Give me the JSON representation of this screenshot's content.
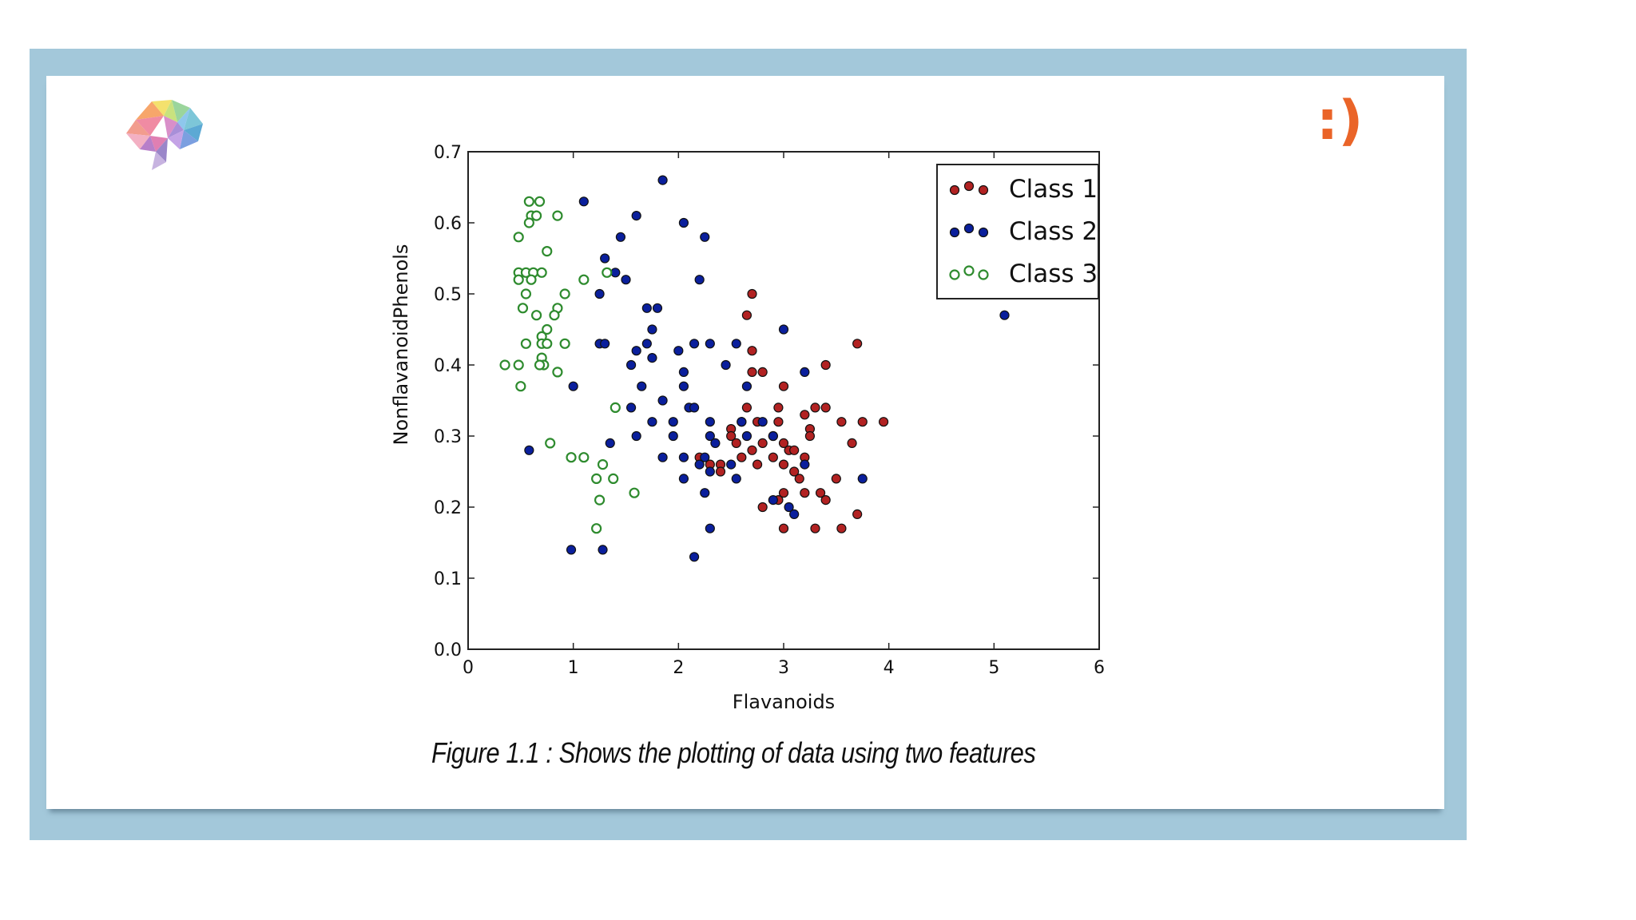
{
  "colors": {
    "frame": "#a3c8da",
    "smiley": "#ea6428",
    "class1": "#b22222",
    "class2": "#0a1f9c",
    "class3": "#2e8b2e"
  },
  "icons": {
    "logo": "polygon-brain-icon"
  },
  "smiley_text": ":)",
  "caption": "Figure 1.1 : Shows the plotting of data using two features",
  "chart_data": {
    "type": "scatter",
    "title": "",
    "xlabel": "Flavanoids",
    "ylabel": "NonflavanoidPhenols",
    "xlim": [
      0,
      6
    ],
    "ylim": [
      0,
      0.7
    ],
    "xticks": [
      "0",
      "1",
      "2",
      "3",
      "4",
      "5",
      "6"
    ],
    "yticks": [
      "0.0",
      "0.1",
      "0.2",
      "0.3",
      "0.4",
      "0.5",
      "0.6",
      "0.7"
    ],
    "grid": false,
    "legend_position": "top-right",
    "series": [
      {
        "name": "Class 1",
        "marker": "filled",
        "color": "#b22222",
        "points": [
          [
            2.7,
            0.5
          ],
          [
            2.65,
            0.47
          ],
          [
            2.7,
            0.42
          ],
          [
            3.7,
            0.43
          ],
          [
            3.4,
            0.4
          ],
          [
            2.7,
            0.39
          ],
          [
            2.8,
            0.39
          ],
          [
            2.65,
            0.34
          ],
          [
            3.0,
            0.37
          ],
          [
            2.95,
            0.34
          ],
          [
            3.2,
            0.33
          ],
          [
            3.3,
            0.34
          ],
          [
            3.4,
            0.34
          ],
          [
            2.6,
            0.32
          ],
          [
            2.75,
            0.32
          ],
          [
            2.95,
            0.32
          ],
          [
            3.25,
            0.31
          ],
          [
            3.55,
            0.32
          ],
          [
            3.75,
            0.32
          ],
          [
            3.95,
            0.32
          ],
          [
            2.5,
            0.31
          ],
          [
            2.9,
            0.3
          ],
          [
            3.25,
            0.3
          ],
          [
            2.2,
            0.27
          ],
          [
            2.3,
            0.26
          ],
          [
            2.4,
            0.26
          ],
          [
            2.6,
            0.27
          ],
          [
            2.7,
            0.28
          ],
          [
            2.8,
            0.29
          ],
          [
            3.0,
            0.29
          ],
          [
            3.05,
            0.28
          ],
          [
            3.1,
            0.28
          ],
          [
            3.2,
            0.27
          ],
          [
            2.75,
            0.26
          ],
          [
            2.9,
            0.27
          ],
          [
            3.0,
            0.26
          ],
          [
            2.4,
            0.25
          ],
          [
            3.15,
            0.24
          ],
          [
            3.5,
            0.24
          ],
          [
            3.65,
            0.29
          ],
          [
            3.2,
            0.22
          ],
          [
            3.35,
            0.22
          ],
          [
            3.4,
            0.21
          ],
          [
            3.0,
            0.22
          ],
          [
            2.8,
            0.2
          ],
          [
            2.95,
            0.21
          ],
          [
            3.0,
            0.17
          ],
          [
            3.3,
            0.17
          ],
          [
            3.55,
            0.17
          ],
          [
            3.7,
            0.19
          ],
          [
            2.5,
            0.3
          ],
          [
            2.55,
            0.29
          ],
          [
            3.1,
            0.25
          ]
        ]
      },
      {
        "name": "Class 2",
        "marker": "filled",
        "color": "#0a1f9c",
        "points": [
          [
            1.85,
            0.66
          ],
          [
            1.1,
            0.63
          ],
          [
            1.6,
            0.61
          ],
          [
            2.05,
            0.6
          ],
          [
            2.25,
            0.58
          ],
          [
            1.45,
            0.58
          ],
          [
            1.3,
            0.55
          ],
          [
            1.4,
            0.53
          ],
          [
            1.5,
            0.52
          ],
          [
            2.2,
            0.52
          ],
          [
            1.25,
            0.5
          ],
          [
            1.7,
            0.48
          ],
          [
            1.8,
            0.48
          ],
          [
            1.75,
            0.45
          ],
          [
            3.0,
            0.45
          ],
          [
            5.1,
            0.47
          ],
          [
            1.25,
            0.43
          ],
          [
            1.3,
            0.43
          ],
          [
            1.7,
            0.43
          ],
          [
            2.15,
            0.43
          ],
          [
            2.3,
            0.43
          ],
          [
            2.55,
            0.43
          ],
          [
            1.6,
            0.42
          ],
          [
            1.75,
            0.41
          ],
          [
            2.0,
            0.42
          ],
          [
            1.55,
            0.4
          ],
          [
            2.45,
            0.4
          ],
          [
            2.05,
            0.39
          ],
          [
            3.2,
            0.39
          ],
          [
            1.0,
            0.37
          ],
          [
            1.65,
            0.37
          ],
          [
            2.05,
            0.37
          ],
          [
            2.65,
            0.37
          ],
          [
            1.85,
            0.35
          ],
          [
            1.55,
            0.34
          ],
          [
            2.1,
            0.34
          ],
          [
            2.15,
            0.34
          ],
          [
            1.75,
            0.32
          ],
          [
            1.95,
            0.32
          ],
          [
            2.3,
            0.32
          ],
          [
            2.6,
            0.32
          ],
          [
            2.8,
            0.32
          ],
          [
            1.6,
            0.3
          ],
          [
            1.95,
            0.3
          ],
          [
            2.3,
            0.3
          ],
          [
            2.65,
            0.3
          ],
          [
            2.9,
            0.3
          ],
          [
            1.35,
            0.29
          ],
          [
            2.35,
            0.29
          ],
          [
            0.58,
            0.28
          ],
          [
            1.85,
            0.27
          ],
          [
            2.05,
            0.27
          ],
          [
            2.25,
            0.27
          ],
          [
            2.2,
            0.26
          ],
          [
            2.3,
            0.25
          ],
          [
            2.5,
            0.26
          ],
          [
            2.55,
            0.24
          ],
          [
            3.2,
            0.26
          ],
          [
            2.05,
            0.24
          ],
          [
            2.25,
            0.22
          ],
          [
            2.9,
            0.21
          ],
          [
            3.05,
            0.2
          ],
          [
            3.1,
            0.19
          ],
          [
            3.75,
            0.24
          ],
          [
            2.3,
            0.17
          ],
          [
            0.98,
            0.14
          ],
          [
            1.28,
            0.14
          ],
          [
            2.15,
            0.13
          ]
        ]
      },
      {
        "name": "Class 3",
        "marker": "open",
        "color": "#2e8b2e",
        "points": [
          [
            0.58,
            0.63
          ],
          [
            0.68,
            0.63
          ],
          [
            0.6,
            0.61
          ],
          [
            0.65,
            0.61
          ],
          [
            0.85,
            0.61
          ],
          [
            0.58,
            0.6
          ],
          [
            0.48,
            0.58
          ],
          [
            0.75,
            0.56
          ],
          [
            1.1,
            0.52
          ],
          [
            1.32,
            0.53
          ],
          [
            0.48,
            0.53
          ],
          [
            0.55,
            0.53
          ],
          [
            0.62,
            0.53
          ],
          [
            0.7,
            0.53
          ],
          [
            0.48,
            0.52
          ],
          [
            0.6,
            0.52
          ],
          [
            0.92,
            0.5
          ],
          [
            0.55,
            0.5
          ],
          [
            0.52,
            0.48
          ],
          [
            0.85,
            0.48
          ],
          [
            0.82,
            0.47
          ],
          [
            0.65,
            0.47
          ],
          [
            0.75,
            0.45
          ],
          [
            0.7,
            0.44
          ],
          [
            0.55,
            0.43
          ],
          [
            0.7,
            0.43
          ],
          [
            0.75,
            0.43
          ],
          [
            0.92,
            0.43
          ],
          [
            0.7,
            0.41
          ],
          [
            0.72,
            0.4
          ],
          [
            0.35,
            0.4
          ],
          [
            0.48,
            0.4
          ],
          [
            0.68,
            0.4
          ],
          [
            0.85,
            0.39
          ],
          [
            0.5,
            0.37
          ],
          [
            1.4,
            0.34
          ],
          [
            0.78,
            0.29
          ],
          [
            0.98,
            0.27
          ],
          [
            1.1,
            0.27
          ],
          [
            1.28,
            0.26
          ],
          [
            1.22,
            0.24
          ],
          [
            1.38,
            0.24
          ],
          [
            1.58,
            0.22
          ],
          [
            1.25,
            0.21
          ],
          [
            1.22,
            0.17
          ]
        ]
      }
    ]
  }
}
